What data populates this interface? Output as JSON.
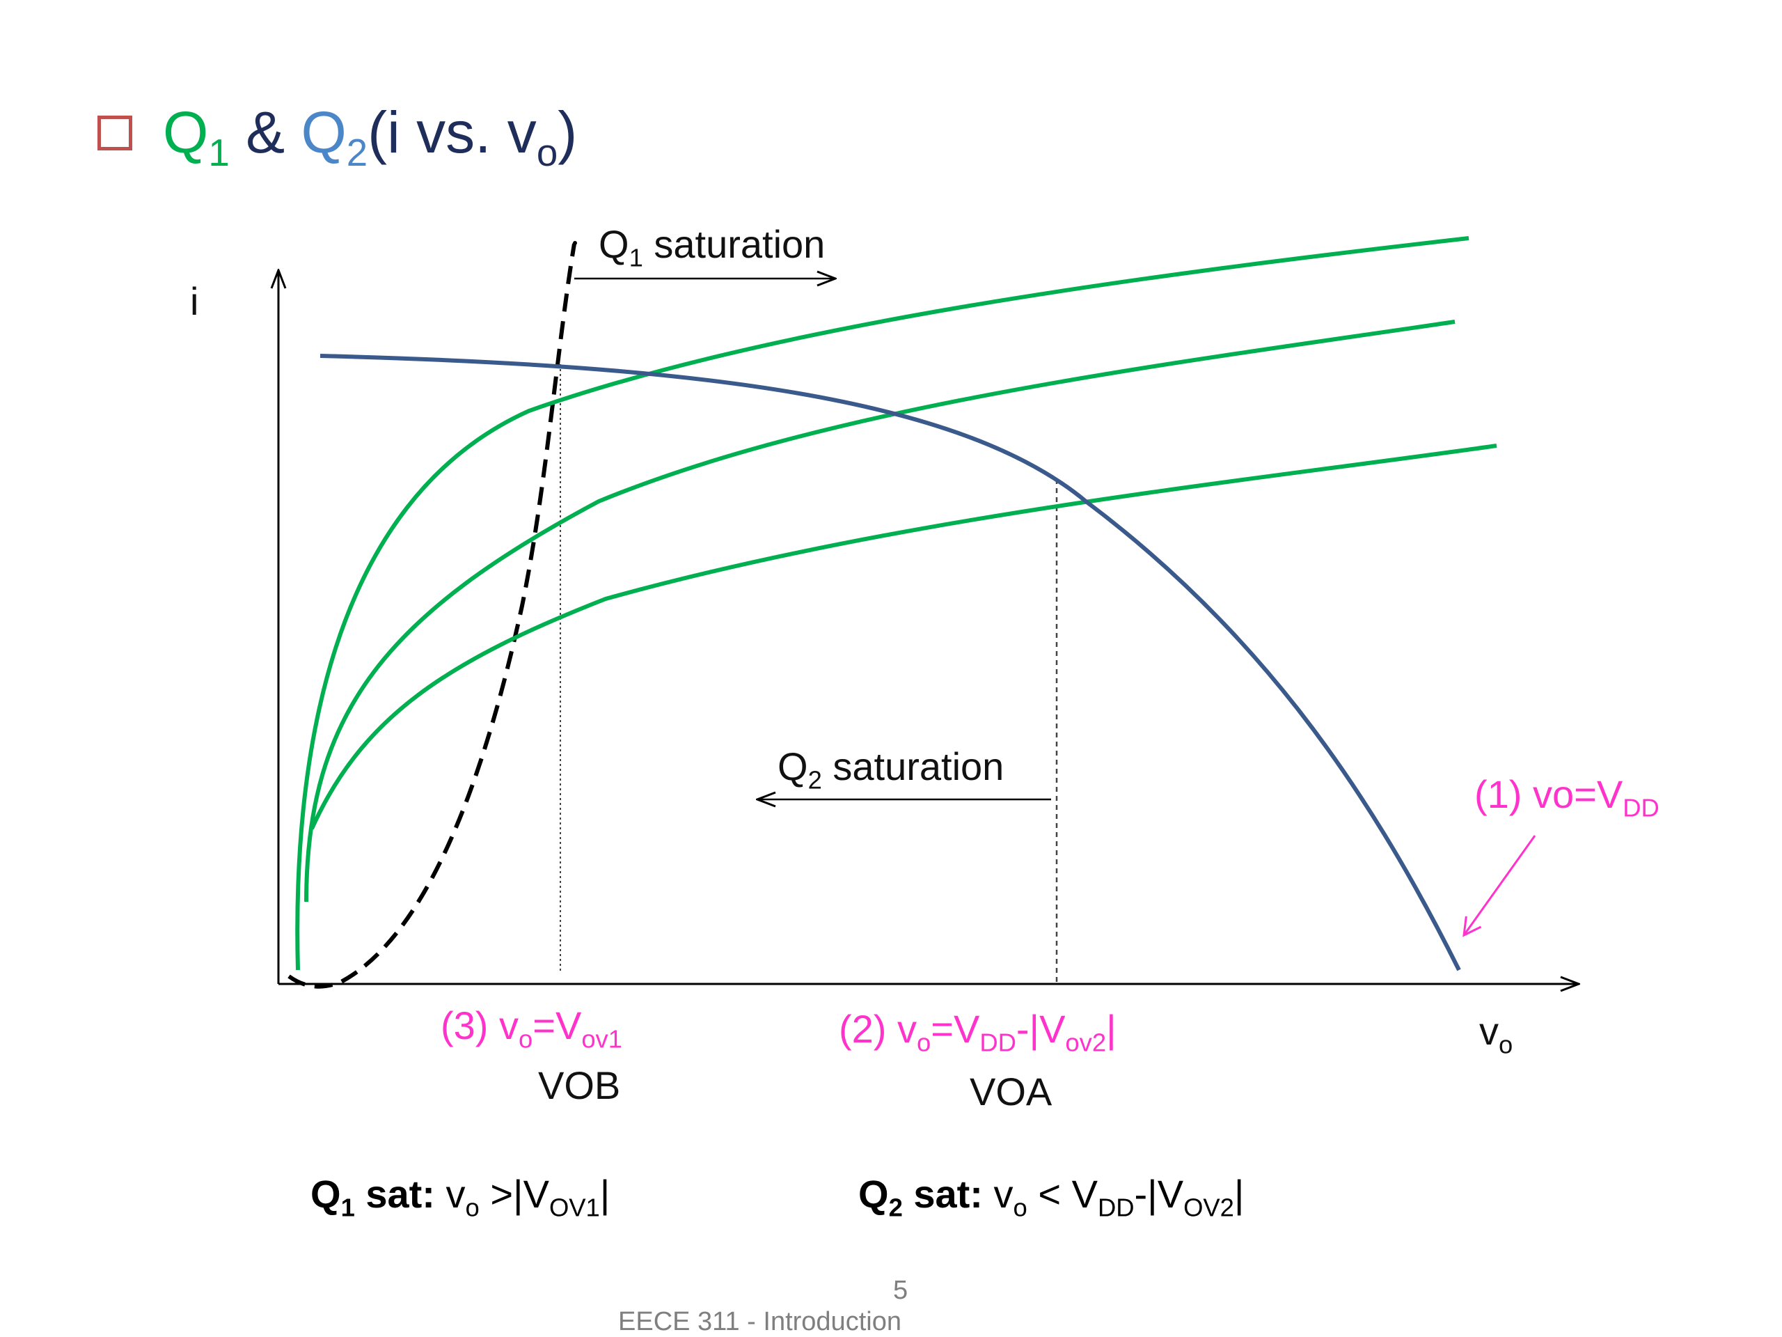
{
  "title": {
    "q1": "Q",
    "q1_sub": "1",
    "amp": "&",
    "q2": "Q",
    "q2_sub": "2",
    "rest_open": "(i vs. v",
    "rest_sub": "o",
    "rest_close": ")"
  },
  "axes": {
    "y_label": "i",
    "x_label": "v",
    "x_label_sub": "o"
  },
  "annotations": {
    "q1_saturation": {
      "q": "Q",
      "sub": "1",
      "text": " saturation"
    },
    "q2_saturation": {
      "q": "Q",
      "sub": "2",
      "text": " saturation"
    },
    "point1": {
      "prefix": "(1) vo=V",
      "sub": "DD"
    },
    "point2": {
      "prefix": "(2) v",
      "sub1": "o",
      "mid": "=V",
      "sub2": "DD",
      "mid2": "-|V",
      "sub3": "ov2",
      "end": "|"
    },
    "point3": {
      "prefix": "(3) v",
      "sub1": "o",
      "mid": "=V",
      "sub2": "ov1"
    },
    "vob": "VOB",
    "voa": "VOA"
  },
  "conditions": {
    "q1": {
      "bold": "Q",
      "bold_sub": "1",
      "bold_rest": " sat:",
      "text": " v",
      "sub1": "o",
      "text2": " >|V",
      "sub2": "OV1",
      "end": "|"
    },
    "q2": {
      "bold": "Q",
      "bold_sub": "2",
      "bold_rest": " sat:",
      "text": " v",
      "sub1": "o",
      "text2": " < V",
      "sub2": "DD",
      "text3": "-|V",
      "sub3": "OV2",
      "end": "|"
    }
  },
  "footer": {
    "page_number": "5",
    "course": "EECE 311 - Introduction"
  },
  "colors": {
    "q1_curves": "#00b050",
    "q2_curve": "#3a5a8c",
    "annotation_magenta": "#ff33cc",
    "bullet": "#c0504d"
  }
}
